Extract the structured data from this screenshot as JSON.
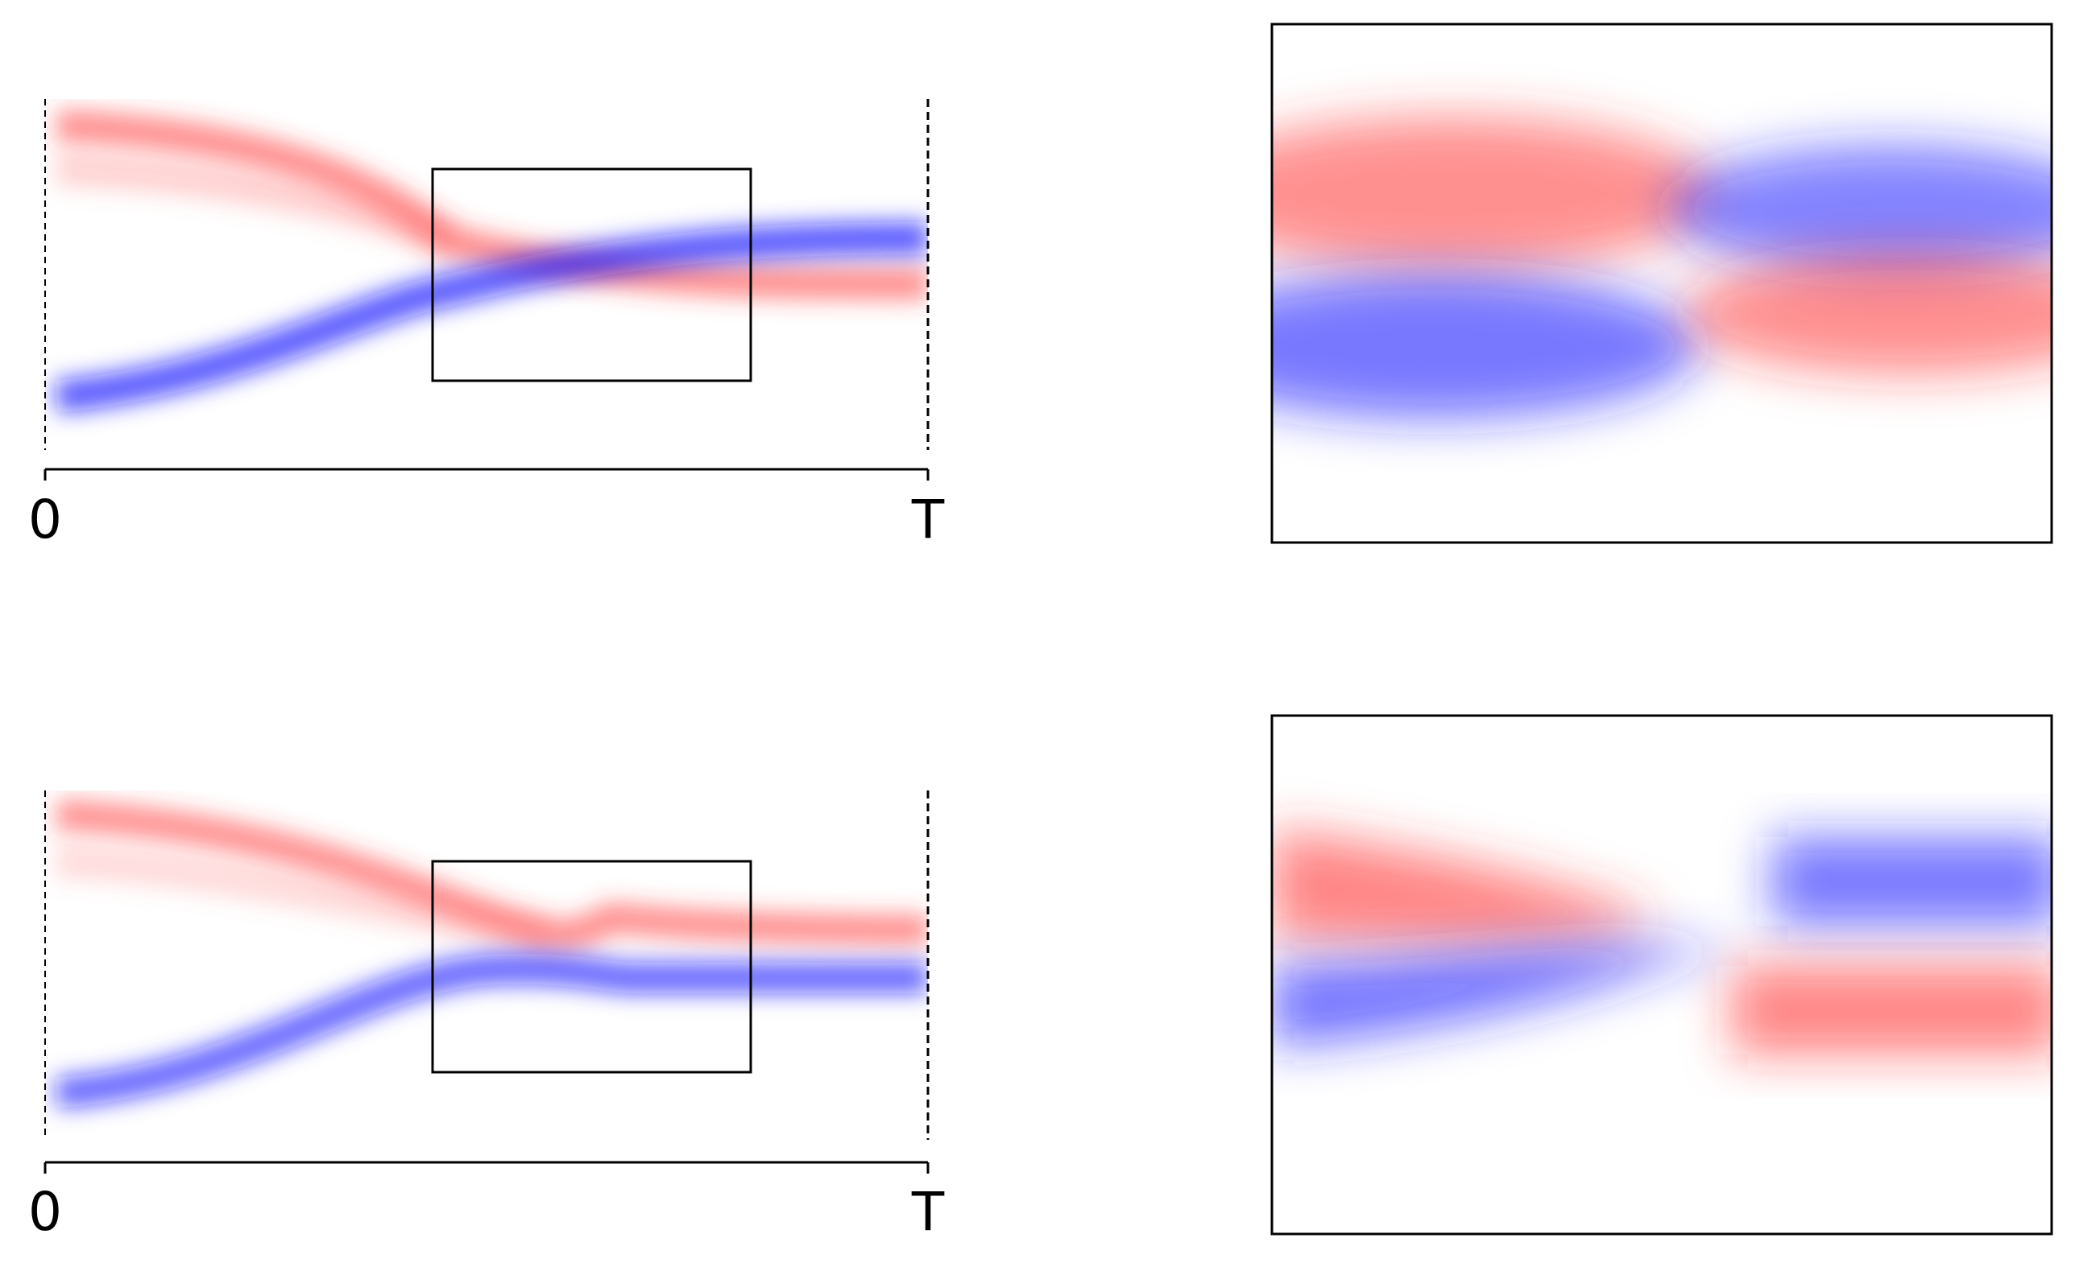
{
  "panels": [
    {
      "xticks": [
        "0",
        "T"
      ]
    },
    {
      "xticks": [
        "0",
        "T"
      ]
    }
  ]
}
